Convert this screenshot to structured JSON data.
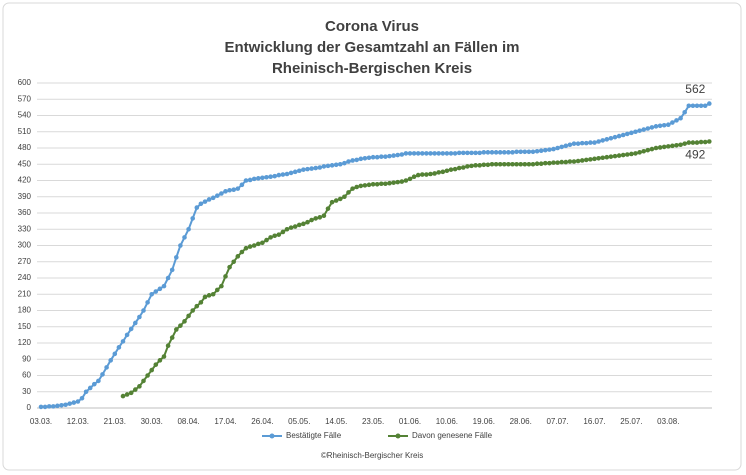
{
  "chart_data": {
    "type": "line",
    "title": [
      "Corona Virus",
      "Entwicklung der Gesamtzahl an Fällen im",
      "Rheinisch-Bergischen Kreis"
    ],
    "footer": "©Rheinisch-Bergischer Kreis",
    "categories": [
      "03.03.",
      null,
      null,
      null,
      null,
      null,
      null,
      null,
      null,
      "12.03.",
      null,
      null,
      null,
      null,
      null,
      null,
      null,
      null,
      "21.03.",
      null,
      null,
      null,
      null,
      null,
      null,
      null,
      null,
      "30.03.",
      null,
      null,
      null,
      null,
      null,
      null,
      null,
      null,
      "08.04.",
      null,
      null,
      null,
      null,
      null,
      null,
      null,
      null,
      "17.04.",
      null,
      null,
      null,
      null,
      null,
      null,
      null,
      null,
      "26.04.",
      null,
      null,
      null,
      null,
      null,
      null,
      null,
      null,
      "05.05.",
      null,
      null,
      null,
      null,
      null,
      null,
      null,
      null,
      "14.05.",
      null,
      null,
      null,
      null,
      null,
      null,
      null,
      null,
      "23.05.",
      null,
      null,
      null,
      null,
      null,
      null,
      null,
      null,
      "01.06.",
      null,
      null,
      null,
      null,
      null,
      null,
      null,
      null,
      "10.06.",
      null,
      null,
      null,
      null,
      null,
      null,
      null,
      null,
      "19.06.",
      null,
      null,
      null,
      null,
      null,
      null,
      null,
      null,
      "28.06.",
      null,
      null,
      null,
      null,
      null,
      null,
      null,
      null,
      "07.07.",
      null,
      null,
      null,
      null,
      null,
      null,
      null,
      null,
      "16.07.",
      null,
      null,
      null,
      null,
      null,
      null,
      null,
      null,
      "25.07.",
      null,
      null,
      null,
      null,
      null,
      null,
      null,
      null,
      "03.08.",
      null,
      null,
      null,
      null,
      null,
      null,
      null,
      null,
      null,
      null
    ],
    "series": [
      {
        "name": "Bestätigte Fälle",
        "color": "#5b9bd5",
        "values": [
          2,
          2,
          3,
          3,
          4,
          5,
          6,
          8,
          10,
          12,
          18,
          30,
          37,
          44,
          50,
          62,
          75,
          88,
          100,
          112,
          123,
          135,
          146,
          157,
          168,
          180,
          195,
          210,
          215,
          220,
          225,
          240,
          255,
          278,
          300,
          315,
          330,
          350,
          370,
          377,
          381,
          385,
          388,
          392,
          396,
          400,
          402,
          403,
          405,
          412,
          420,
          421,
          423,
          424,
          425,
          426,
          427,
          428,
          430,
          431,
          432,
          434,
          436,
          438,
          440,
          441,
          442,
          443,
          444,
          446,
          447,
          448,
          449,
          450,
          452,
          455,
          457,
          458,
          460,
          461,
          462,
          463,
          463,
          464,
          464,
          465,
          466,
          467,
          468,
          470,
          470,
          470,
          470,
          470,
          470,
          470,
          470,
          470,
          470,
          470,
          470,
          470,
          471,
          471,
          471,
          471,
          471,
          471,
          472,
          472,
          472,
          472,
          472,
          472,
          472,
          472,
          473,
          473,
          473,
          473,
          473,
          474,
          475,
          476,
          477,
          478,
          480,
          482,
          484,
          486,
          488,
          488,
          489,
          489,
          490,
          490,
          492,
          494,
          496,
          498,
          500,
          502,
          504,
          506,
          508,
          510,
          512,
          514,
          516,
          518,
          520,
          521,
          522,
          523,
          527,
          531,
          535,
          546,
          558,
          558,
          558,
          558,
          558,
          562
        ]
      },
      {
        "name": "Davon genesene Fälle",
        "color": "#548235",
        "values": [
          null,
          null,
          null,
          null,
          null,
          null,
          null,
          null,
          null,
          null,
          null,
          null,
          null,
          null,
          null,
          null,
          null,
          null,
          null,
          null,
          22,
          25,
          28,
          34,
          40,
          50,
          60,
          70,
          80,
          88,
          95,
          115,
          130,
          145,
          152,
          160,
          170,
          180,
          188,
          195,
          205,
          208,
          210,
          218,
          225,
          243,
          260,
          270,
          280,
          288,
          295,
          298,
          300,
          303,
          305,
          310,
          315,
          318,
          320,
          325,
          330,
          333,
          335,
          338,
          340,
          343,
          347,
          350,
          352,
          355,
          368,
          380,
          383,
          386,
          390,
          398,
          405,
          408,
          410,
          411,
          412,
          413,
          413,
          414,
          414,
          415,
          416,
          417,
          418,
          420,
          423,
          427,
          430,
          431,
          431,
          432,
          433,
          435,
          436,
          438,
          440,
          441,
          443,
          444,
          446,
          447,
          448,
          448,
          449,
          449,
          450,
          450,
          450,
          450,
          450,
          450,
          450,
          450,
          450,
          450,
          450,
          451,
          451,
          452,
          452,
          453,
          453,
          454,
          454,
          455,
          455,
          456,
          457,
          458,
          459,
          460,
          461,
          462,
          463,
          464,
          465,
          466,
          467,
          468,
          469,
          470,
          472,
          474,
          476,
          478,
          480,
          481,
          482,
          483,
          484,
          485,
          486,
          488,
          490,
          490,
          490,
          491,
          491,
          492
        ]
      }
    ],
    "ylim": [
      0,
      600
    ],
    "yticks": [
      0,
      30,
      60,
      90,
      120,
      150,
      180,
      210,
      240,
      270,
      300,
      330,
      360,
      390,
      420,
      450,
      480,
      510,
      540,
      570,
      600
    ],
    "grid": true,
    "legend": "bottom"
  }
}
